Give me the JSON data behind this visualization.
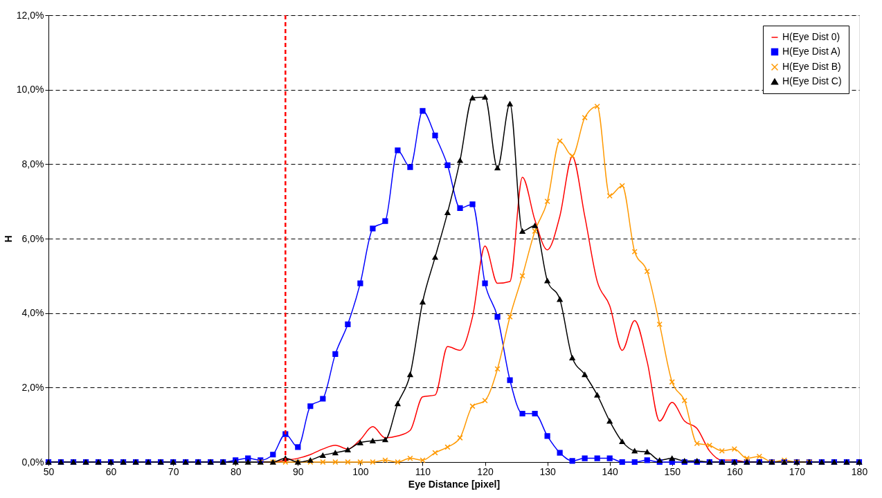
{
  "chart_data": {
    "type": "line",
    "xlabel": "Eye Distance [pixel]",
    "ylabel": "H",
    "x": [
      50,
      52,
      54,
      56,
      58,
      60,
      62,
      64,
      66,
      68,
      70,
      72,
      74,
      76,
      78,
      80,
      82,
      84,
      86,
      88,
      90,
      92,
      94,
      96,
      98,
      100,
      102,
      104,
      106,
      108,
      110,
      112,
      114,
      116,
      118,
      120,
      122,
      124,
      126,
      128,
      130,
      132,
      134,
      136,
      138,
      140,
      142,
      144,
      146,
      148,
      150,
      152,
      154,
      156,
      158,
      160,
      162,
      164,
      166,
      168,
      170,
      172,
      174,
      176,
      178,
      180
    ],
    "series": [
      {
        "name": "H(Eye Dist 0)",
        "color": "#ff0000",
        "marker": "none",
        "values": [
          null,
          null,
          null,
          null,
          null,
          null,
          null,
          null,
          null,
          null,
          null,
          null,
          null,
          null,
          null,
          null,
          null,
          0,
          0,
          0.05,
          0.1,
          0.2,
          0.35,
          0.45,
          0.35,
          0.6,
          0.95,
          0.65,
          0.7,
          0.85,
          1.75,
          1.8,
          3.1,
          3.0,
          3.9,
          5.8,
          4.8,
          4.85,
          7.65,
          6.5,
          5.7,
          6.6,
          8.2,
          6.6,
          4.85,
          4.2,
          3.0,
          3.8,
          2.7,
          1.1,
          1.6,
          1.1,
          0.9,
          0.3,
          0.05,
          0.05,
          0,
          0,
          null,
          null,
          null,
          null,
          null,
          null,
          null,
          null
        ]
      },
      {
        "name": "H(Eye Dist A)",
        "color": "#0000ff",
        "marker": "square",
        "values": [
          0,
          0,
          0,
          0,
          0,
          0,
          0,
          0,
          0,
          0,
          0,
          0,
          0,
          0,
          0,
          0.05,
          0.1,
          0.05,
          0.2,
          0.75,
          0.4,
          1.5,
          1.7,
          2.9,
          3.7,
          4.8,
          6.27,
          6.47,
          8.37,
          7.92,
          9.43,
          8.77,
          7.97,
          6.82,
          6.92,
          4.8,
          3.9,
          2.2,
          1.3,
          1.3,
          0.7,
          0.25,
          0.03,
          0.1,
          0.1,
          0.1,
          0,
          0,
          0.05,
          0,
          0,
          0,
          0,
          0,
          0,
          0,
          0,
          0,
          0,
          0,
          0,
          0,
          0,
          0,
          0,
          0
        ]
      },
      {
        "name": "H(Eye Dist B)",
        "color": "#ff9900",
        "marker": "cross",
        "values": [
          null,
          null,
          null,
          null,
          null,
          null,
          null,
          null,
          null,
          null,
          null,
          null,
          null,
          null,
          null,
          null,
          null,
          0,
          0,
          0,
          0,
          0,
          0,
          0,
          0,
          0,
          0,
          0.05,
          0,
          0.1,
          0.05,
          0.25,
          0.4,
          0.65,
          1.5,
          1.65,
          2.5,
          3.9,
          5.0,
          6.2,
          7.0,
          8.62,
          8.22,
          9.25,
          9.55,
          7.15,
          7.42,
          5.65,
          5.12,
          3.7,
          2.15,
          1.65,
          0.5,
          0.45,
          0.3,
          0.35,
          0.1,
          0.15,
          0,
          0.05,
          0,
          0,
          null,
          null,
          null,
          null
        ]
      },
      {
        "name": "H(Eye Dist C)",
        "color": "#000000",
        "marker": "triangle",
        "values": [
          0,
          0,
          0,
          0,
          0,
          0,
          0,
          0,
          0,
          0,
          0,
          0,
          0,
          0,
          0,
          0,
          0,
          0,
          0,
          0.1,
          0,
          0.05,
          0.18,
          0.25,
          0.33,
          0.52,
          0.57,
          0.6,
          1.57,
          2.35,
          4.3,
          5.5,
          6.7,
          8.1,
          9.78,
          9.8,
          7.9,
          9.62,
          6.2,
          6.35,
          4.87,
          4.37,
          2.8,
          2.35,
          1.8,
          1.1,
          0.55,
          0.3,
          0.27,
          0.05,
          0.1,
          0.03,
          0.03,
          0,
          0,
          0,
          0,
          0,
          0,
          0,
          0,
          0,
          0,
          0,
          0,
          0
        ]
      }
    ],
    "xlim": [
      50,
      180
    ],
    "xticks": [
      50,
      60,
      70,
      80,
      90,
      100,
      110,
      120,
      130,
      140,
      150,
      160,
      170,
      180
    ],
    "ylim": [
      0,
      12
    ],
    "yticks": [
      {
        "value": 0,
        "label": "0,0%"
      },
      {
        "value": 2,
        "label": "2,0%"
      },
      {
        "value": 4,
        "label": "4,0%"
      },
      {
        "value": 6,
        "label": "6,0%"
      },
      {
        "value": 8,
        "label": "8,0%"
      },
      {
        "value": 10,
        "label": "10,0%"
      },
      {
        "value": 12,
        "label": "12,0%"
      }
    ],
    "ref_lines": [
      {
        "axis": "x",
        "value": 88,
        "color": "#ff0000",
        "line_style": "dashed"
      }
    ],
    "grid": "y",
    "legend": "top right"
  }
}
